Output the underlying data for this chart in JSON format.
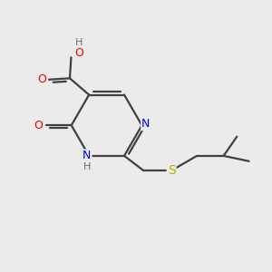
{
  "background_color": "#ebebeb",
  "atom_colors": {
    "C": "#404040",
    "N": "#0000ee",
    "O": "#ee0000",
    "S": "#bbaa00",
    "H": "#607070"
  },
  "bond_color": "#404040",
  "bond_width": 1.6
}
